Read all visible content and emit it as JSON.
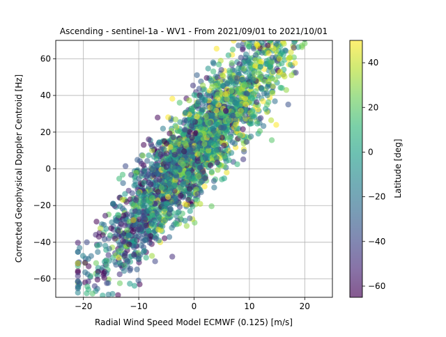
{
  "chart_data": {
    "type": "scatter",
    "title": "Ascending - sentinel-1a - WV1 - From 2021/09/01 to 2021/10/01",
    "xlabel": "Radial Wind Speed Model ECMWF (0.125) [m/s]",
    "ylabel": "Corrected Geophysical Doppler Centroid [Hz]",
    "xlim": [
      -25,
      25
    ],
    "ylim": [
      -70,
      70
    ],
    "xticks": [
      -20,
      -10,
      0,
      10,
      20
    ],
    "yticks": [
      -60,
      -40,
      -20,
      0,
      20,
      40,
      60
    ],
    "grid": true,
    "point_alpha": 0.55,
    "colorbar": {
      "label": "Latitude [deg]",
      "range": [
        -65,
        50
      ],
      "ticks": [
        -60,
        -40,
        -20,
        0,
        20,
        40
      ],
      "colormap": "viridis",
      "colors": [
        "#440154",
        "#482878",
        "#3e4989",
        "#31688e",
        "#26828e",
        "#1f9e89",
        "#35b779",
        "#6ece58",
        "#b5de2b",
        "#fde725"
      ]
    },
    "trend": {
      "slope": 3.5,
      "intercept": 10,
      "spread_hz": 14,
      "x_range": [
        -20,
        20
      ]
    },
    "point_count": 2600
  }
}
